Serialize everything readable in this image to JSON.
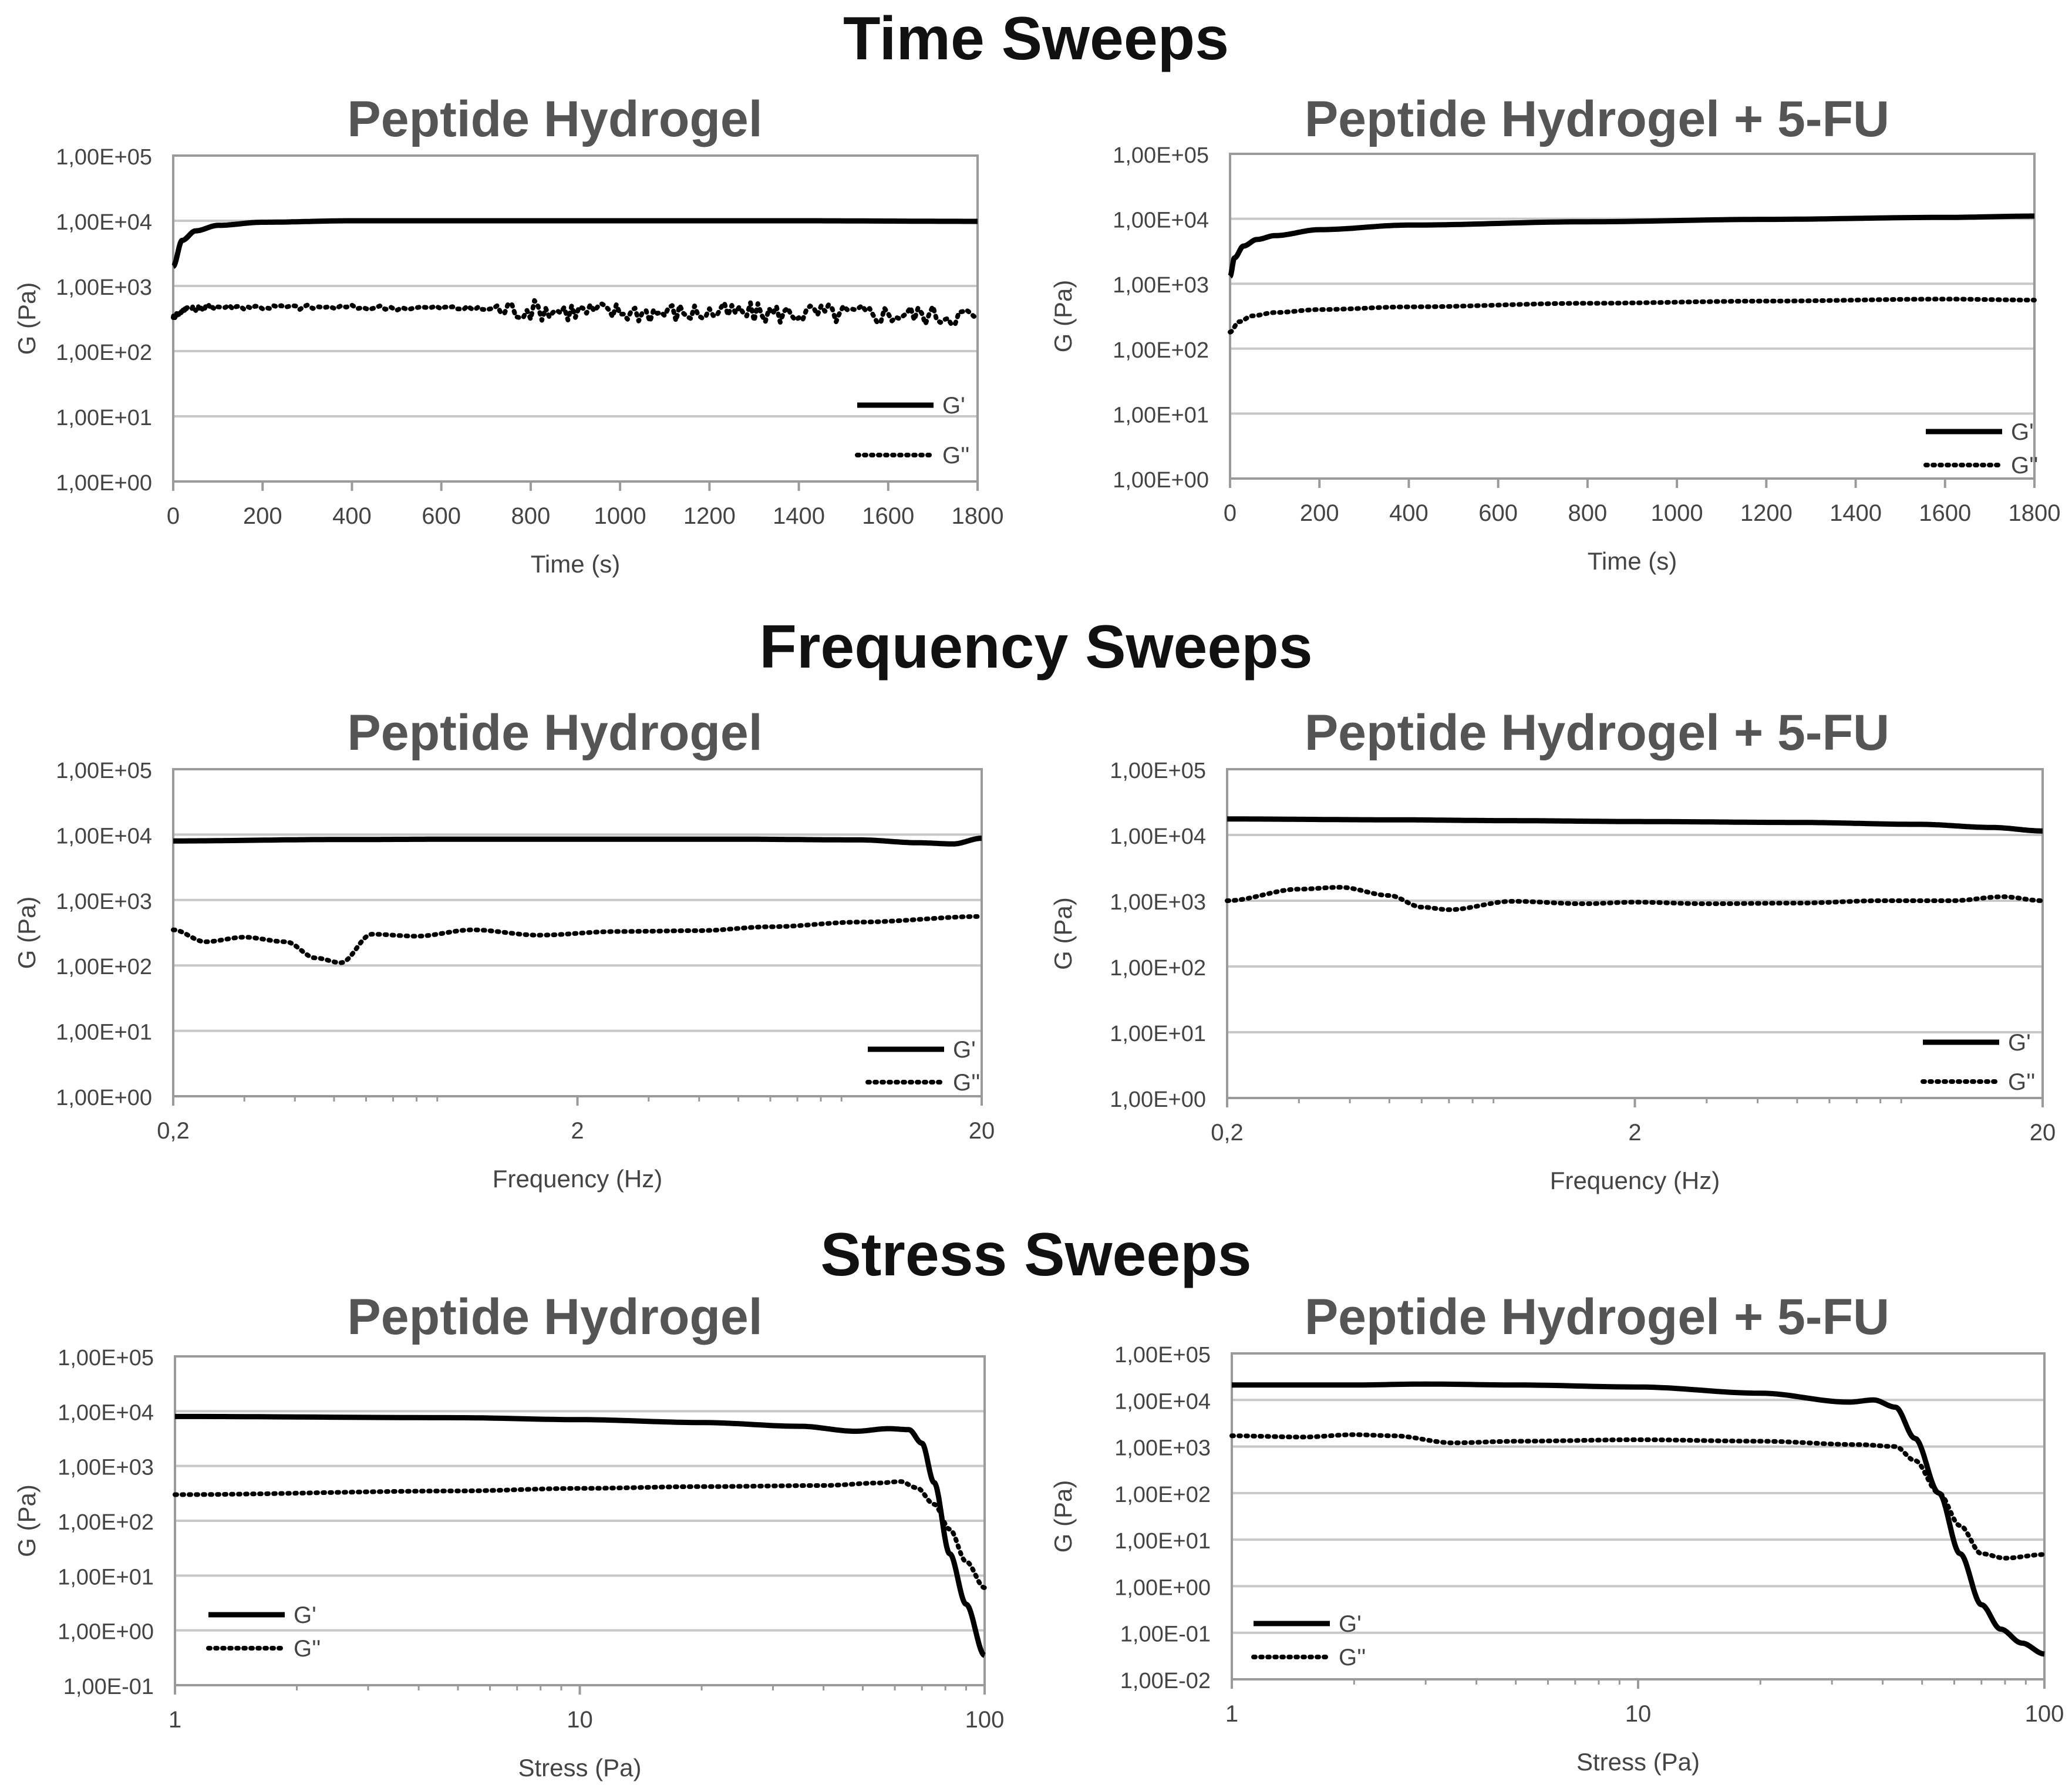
{
  "sections": [
    {
      "title": "Time Sweeps"
    },
    {
      "title": "Frequency Sweeps"
    },
    {
      "title": "Stress Sweeps"
    }
  ],
  "chart_data": [
    {
      "id": "time-left",
      "type": "line",
      "title": "Peptide Hydrogel",
      "xlabel": "Time (s)",
      "ylabel": "G (Pa)",
      "xscale": "linear",
      "xlim": [
        0,
        1800
      ],
      "xticks": [
        0,
        200,
        400,
        600,
        800,
        1000,
        1200,
        1400,
        1600,
        1800
      ],
      "xtick_labels": [
        "0",
        "200",
        "400",
        "600",
        "800",
        "1000",
        "1200",
        "1400",
        "1600",
        "1800"
      ],
      "ylim_exp": [
        0,
        5
      ],
      "ytick_labels": [
        "1,00E+00",
        "1,00E+01",
        "1,00E+02",
        "1,00E+03",
        "1,00E+04",
        "1,00E+05"
      ],
      "grid": true,
      "legend_position": "bottom-right",
      "noise": true,
      "series": [
        {
          "name": "G'",
          "style": "solid",
          "x": [
            0,
            20,
            50,
            100,
            200,
            400,
            600,
            1000,
            1400,
            1800
          ],
          "y": [
            2000,
            5000,
            7000,
            8500,
            9500,
            10000,
            10000,
            10000,
            10000,
            9800
          ]
        },
        {
          "name": "G''",
          "style": "dotted",
          "x": [
            0,
            30,
            100,
            300,
            600,
            800,
            1000,
            1200,
            1400,
            1600,
            1800
          ],
          "y": [
            350,
            450,
            480,
            470,
            460,
            430,
            400,
            390,
            380,
            370,
            350
          ]
        }
      ]
    },
    {
      "id": "time-right",
      "type": "line",
      "title": "Peptide Hydrogel + 5-FU",
      "xlabel": "Time (s)",
      "ylabel": "G (Pa)",
      "xscale": "linear",
      "xlim": [
        0,
        1800
      ],
      "xticks": [
        0,
        200,
        400,
        600,
        800,
        1000,
        1200,
        1400,
        1600,
        1800
      ],
      "xtick_labels": [
        "0",
        "200",
        "400",
        "600",
        "800",
        "1000",
        "1200",
        "1400",
        "1600",
        "1800"
      ],
      "ylim_exp": [
        0,
        5
      ],
      "ytick_labels": [
        "1,00E+00",
        "1,00E+01",
        "1,00E+02",
        "1,00E+03",
        "1,00E+04",
        "1,00E+05"
      ],
      "grid": true,
      "legend_position": "bottom-right",
      "noise": false,
      "series": [
        {
          "name": "G'",
          "style": "solid",
          "x": [
            0,
            10,
            30,
            60,
            100,
            200,
            400,
            800,
            1200,
            1600,
            1800
          ],
          "y": [
            1300,
            2500,
            3800,
            4800,
            5500,
            6800,
            8000,
            9000,
            9800,
            10500,
            11000
          ]
        },
        {
          "name": "G''",
          "style": "dotted",
          "x": [
            0,
            20,
            50,
            100,
            200,
            400,
            800,
            1200,
            1600,
            1800
          ],
          "y": [
            180,
            260,
            320,
            360,
            400,
            440,
            500,
            540,
            580,
            560
          ]
        }
      ]
    },
    {
      "id": "freq-left",
      "type": "line",
      "title": "Peptide Hydrogel",
      "xlabel": "Frequency (Hz)",
      "ylabel": "G (Pa)",
      "xscale": "log",
      "xlim": [
        0.2,
        20
      ],
      "xticks": [
        0.2,
        2,
        20
      ],
      "xtick_labels": [
        "0,2",
        "2",
        "20"
      ],
      "ylim_exp": [
        0,
        5
      ],
      "ytick_labels": [
        "1,00E+00",
        "1,00E+01",
        "1,00E+02",
        "1,00E+03",
        "1,00E+04",
        "1,00E+05"
      ],
      "grid": true,
      "legend_position": "bottom-right",
      "noise": false,
      "series": [
        {
          "name": "G'",
          "style": "solid",
          "x": [
            0.2,
            0.5,
            1,
            2,
            5,
            10,
            14,
            17,
            20
          ],
          "y": [
            8000,
            8400,
            8500,
            8500,
            8500,
            8300,
            7500,
            7200,
            8800
          ]
        },
        {
          "name": "G''",
          "style": "dotted",
          "x": [
            0.2,
            0.24,
            0.3,
            0.38,
            0.45,
            0.52,
            0.62,
            0.8,
            1.1,
            1.6,
            2.5,
            4,
            6,
            10,
            20
          ],
          "y": [
            350,
            230,
            270,
            230,
            130,
            110,
            300,
            280,
            350,
            290,
            330,
            340,
            390,
            460,
            560
          ]
        }
      ]
    },
    {
      "id": "freq-right",
      "type": "line",
      "title": "Peptide Hydrogel + 5-FU",
      "xlabel": "Frequency (Hz)",
      "ylabel": "G (Pa)",
      "xscale": "log",
      "xlim": [
        0.2,
        20
      ],
      "xticks": [
        0.2,
        2,
        20
      ],
      "xtick_labels": [
        "0,2",
        "2",
        "20"
      ],
      "ylim_exp": [
        0,
        5
      ],
      "ytick_labels": [
        "1,00E+00",
        "1,00E+01",
        "1,00E+02",
        "1,00E+03",
        "1,00E+04",
        "1,00E+05"
      ],
      "grid": true,
      "legend_position": "bottom-right",
      "noise": false,
      "series": [
        {
          "name": "G'",
          "style": "solid",
          "x": [
            0.2,
            0.5,
            1,
            2,
            5,
            10,
            15,
            20
          ],
          "y": [
            17500,
            17000,
            16500,
            16000,
            15500,
            14500,
            13000,
            11500
          ]
        },
        {
          "name": "G''",
          "style": "dotted",
          "x": [
            0.2,
            0.3,
            0.38,
            0.5,
            0.6,
            0.7,
            1,
            1.5,
            2,
            3,
            5,
            8,
            12,
            16,
            20
          ],
          "y": [
            1000,
            1500,
            1600,
            1200,
            800,
            730,
            980,
            900,
            950,
            900,
            920,
            1000,
            1000,
            1150,
            1000
          ]
        }
      ]
    },
    {
      "id": "stress-left",
      "type": "line",
      "title": "Peptide Hydrogel",
      "xlabel": "Stress (Pa)",
      "ylabel": "G (Pa)",
      "xscale": "log",
      "xlim": [
        1,
        100
      ],
      "xticks": [
        1,
        10,
        100
      ],
      "xtick_labels": [
        "1",
        "10",
        "100"
      ],
      "ylim_exp": [
        -1,
        5
      ],
      "ytick_labels": [
        "1,00E-01",
        "1,00E+00",
        "1,00E+01",
        "1,00E+02",
        "1,00E+03",
        "1,00E+04",
        "1,00E+05"
      ],
      "grid": true,
      "legend_position": "bottom-left",
      "noise": false,
      "series": [
        {
          "name": "G'",
          "style": "solid",
          "x": [
            1,
            5,
            10,
            20,
            35,
            48,
            58,
            65,
            70,
            75,
            82,
            90,
            100
          ],
          "y": [
            8000,
            7600,
            7000,
            6200,
            5300,
            4300,
            4800,
            4600,
            2600,
            500,
            25,
            3,
            0.35
          ]
        },
        {
          "name": "G''",
          "style": "dotted",
          "x": [
            1,
            5,
            10,
            20,
            40,
            55,
            62,
            68,
            75,
            82,
            90,
            100
          ],
          "y": [
            300,
            350,
            390,
            420,
            440,
            490,
            520,
            400,
            200,
            70,
            18,
            6
          ]
        }
      ]
    },
    {
      "id": "stress-right",
      "type": "line",
      "title": "Peptide Hydrogel + 5-FU",
      "xlabel": "Stress (Pa)",
      "ylabel": "G (Pa)",
      "xscale": "log",
      "xlim": [
        1,
        100
      ],
      "xticks": [
        1,
        10,
        100
      ],
      "xtick_labels": [
        "1",
        "10",
        "100"
      ],
      "ylim_exp": [
        -2,
        5
      ],
      "ytick_labels": [
        "1,00E-02",
        "1,00E-01",
        "1,00E+00",
        "1,00E+01",
        "1,00E+02",
        "1,00E+03",
        "1,00E+04",
        "1,00E+05"
      ],
      "grid": true,
      "legend_position": "bottom-left",
      "noise": false,
      "series": [
        {
          "name": "G'",
          "style": "solid",
          "x": [
            1,
            2,
            3,
            5,
            10,
            20,
            33,
            38,
            43,
            48,
            55,
            62,
            70,
            78,
            88,
            100
          ],
          "y": [
            21000,
            21000,
            22000,
            21000,
            19000,
            14000,
            9000,
            10000,
            7000,
            1500,
            100,
            5,
            0.4,
            0.12,
            0.06,
            0.035
          ]
        },
        {
          "name": "G''",
          "style": "dotted",
          "x": [
            1,
            1.5,
            2,
            2.5,
            3.5,
            5,
            10,
            20,
            35,
            43,
            48,
            55,
            62,
            70,
            80,
            100
          ],
          "y": [
            1700,
            1600,
            1800,
            1700,
            1200,
            1300,
            1400,
            1300,
            1100,
            1000,
            500,
            100,
            20,
            5,
            4,
            4.8
          ]
        }
      ]
    }
  ]
}
